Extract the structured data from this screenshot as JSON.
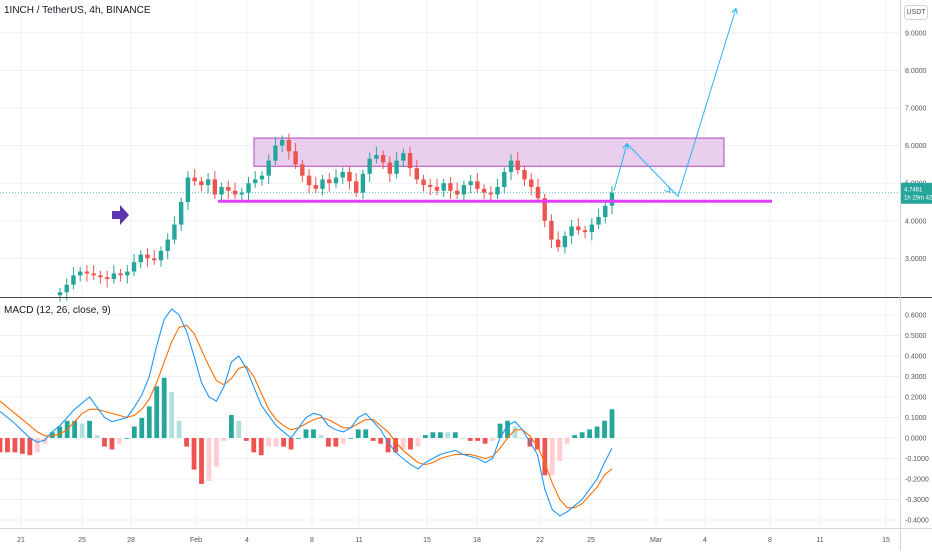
{
  "header": {
    "title": "1INCH / TetherUS, 4h, BINANCE",
    "currency_badge": "USDT"
  },
  "macd_header": {
    "label": "MACD (12, 26, close, 9)"
  },
  "colors": {
    "grid": "#eef0f4",
    "axis_text": "#50535e",
    "up": "#26a69a",
    "down": "#ef5350",
    "hist_up_strong": "#26a69a",
    "hist_up_weak": "#b2dfdb",
    "hist_down_strong": "#ef5350",
    "hist_down_weak": "#ffcdd2",
    "macd_line": "#2196f3",
    "signal_line": "#ff6d00",
    "zone_fill": "#e1bee7",
    "zone_stroke": "#ab47bc",
    "support_line": "#e040fb",
    "projection": "#29b6f6",
    "arrow_marker": "#5e35b1",
    "price_tag": "#26a69a"
  },
  "price_tag": {
    "line1": "4.7461",
    "line2": "1h 29m 42s"
  },
  "chart_data": [
    {
      "type": "candlestick",
      "title": "1INCH / TetherUS, 4h, BINANCE",
      "y_axis_ticks": [
        "3.0000",
        "4.0000",
        "5.0000",
        "6.0000",
        "7.0000",
        "8.0000",
        "9.0000"
      ],
      "ylim": [
        2.0,
        9.8
      ],
      "x_axis_ticks": [
        "21",
        "25",
        "28",
        "Feb",
        "4",
        "8",
        "11",
        "15",
        "18",
        "22",
        "25",
        "Mar",
        "4",
        "8",
        "11",
        "15"
      ],
      "last_price": 4.7461,
      "close_series": [
        2.1,
        2.3,
        2.55,
        2.65,
        2.6,
        2.55,
        2.5,
        2.45,
        2.6,
        2.55,
        2.65,
        2.9,
        3.1,
        3.0,
        2.95,
        3.2,
        3.5,
        3.9,
        4.5,
        5.15,
        5.05,
        4.95,
        5.1,
        4.7,
        4.9,
        4.8,
        4.7,
        4.75,
        5.0,
        5.1,
        5.2,
        5.6,
        6.0,
        6.15,
        5.85,
        5.5,
        5.2,
        4.95,
        4.85,
        5.1,
        5.0,
        5.15,
        5.3,
        5.05,
        4.75,
        5.25,
        5.65,
        5.75,
        5.55,
        5.25,
        5.6,
        5.8,
        5.4,
        5.1,
        4.95,
        4.9,
        4.8,
        5.0,
        4.8,
        4.7,
        4.95,
        5.05,
        4.85,
        4.75,
        4.7,
        4.9,
        5.3,
        5.6,
        5.35,
        5.1,
        4.9,
        4.6,
        4.0,
        3.5,
        3.3,
        3.6,
        3.85,
        3.75,
        3.7,
        3.9,
        4.1,
        4.4,
        4.75
      ],
      "annotations": {
        "resistance_zone": [
          5.45,
          6.2
        ],
        "support_level": 4.52,
        "projection_path": [
          4.9,
          6.05,
          4.65,
          9.65
        ]
      }
    },
    {
      "type": "macd",
      "title": "MACD (12, 26, close, 9)",
      "y_axis_ticks": [
        "0.6000",
        "0.5000",
        "0.4000",
        "0.3000",
        "0.2000",
        "0.1000",
        "0.0000",
        "-0.1000",
        "-0.2000",
        "-0.3000",
        "-0.4000"
      ],
      "ylim": [
        -0.44,
        0.65
      ],
      "series": [
        {
          "macd": [
            0.13,
            0.1,
            0.07,
            0.035,
            0.0,
            -0.02,
            -0.01,
            0.03,
            0.06,
            0.1,
            0.14,
            0.17,
            0.2,
            0.15,
            0.1,
            0.08,
            0.09,
            0.1,
            0.15,
            0.21,
            0.3,
            0.45,
            0.58,
            0.63,
            0.6,
            0.52,
            0.4,
            0.27,
            0.2,
            0.18,
            0.25,
            0.37,
            0.4,
            0.34,
            0.25,
            0.16,
            0.11,
            0.06,
            0.03,
            0.0,
            0.05,
            0.1,
            0.12,
            0.11,
            0.06,
            0.04,
            0.03,
            0.05,
            0.1,
            0.12,
            0.08,
            0.04,
            -0.02,
            -0.07,
            -0.1,
            -0.13,
            -0.15,
            -0.12,
            -0.1,
            -0.08,
            -0.07,
            -0.06,
            -0.08,
            -0.09,
            -0.1,
            -0.12,
            -0.1,
            0.0,
            0.06,
            0.08,
            0.04,
            -0.02,
            -0.08,
            -0.25,
            -0.35,
            -0.38,
            -0.36,
            -0.33,
            -0.3,
            -0.25,
            -0.2,
            -0.12,
            -0.05
          ]
        },
        {
          "signal": [
            0.18,
            0.15,
            0.12,
            0.09,
            0.06,
            0.03,
            0.01,
            0.01,
            0.02,
            0.04,
            0.08,
            0.12,
            0.14,
            0.14,
            0.13,
            0.12,
            0.11,
            0.1,
            0.11,
            0.14,
            0.19,
            0.27,
            0.37,
            0.47,
            0.54,
            0.55,
            0.51,
            0.43,
            0.35,
            0.28,
            0.26,
            0.29,
            0.34,
            0.35,
            0.3,
            0.22,
            0.14,
            0.09,
            0.06,
            0.04,
            0.05,
            0.07,
            0.09,
            0.1,
            0.09,
            0.07,
            0.05,
            0.05,
            0.07,
            0.09,
            0.09,
            0.06,
            0.03,
            -0.02,
            -0.06,
            -0.09,
            -0.12,
            -0.13,
            -0.12,
            -0.1,
            -0.09,
            -0.08,
            -0.08,
            -0.08,
            -0.09,
            -0.1,
            -0.09,
            -0.05,
            0.0,
            0.04,
            0.04,
            0.01,
            -0.04,
            -0.12,
            -0.22,
            -0.3,
            -0.34,
            -0.34,
            -0.32,
            -0.28,
            -0.24,
            -0.18,
            -0.15
          ]
        }
      ]
    }
  ]
}
